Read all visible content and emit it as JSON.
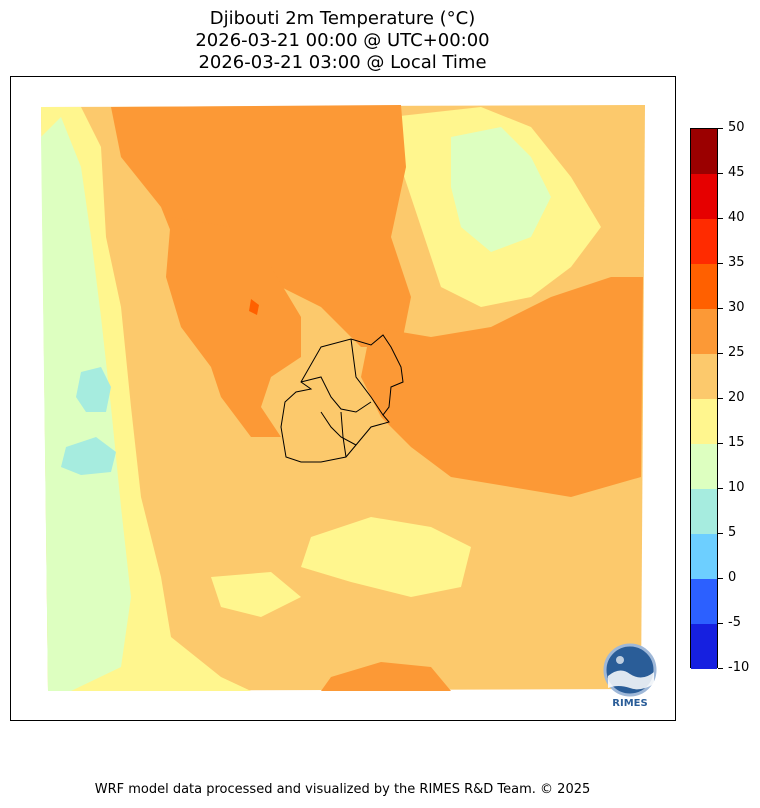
{
  "title": {
    "line1": "Djibouti 2m Temperature (°C)",
    "line2": "2026-03-21 00:00 @ UTC+00:00",
    "line3": "2026-03-21 03:00 @ Local Time"
  },
  "colorbar": {
    "ticks": [
      "50",
      "45",
      "40",
      "35",
      "30",
      "25",
      "20",
      "15",
      "10",
      "5",
      "0",
      "-5",
      "-10"
    ],
    "colors": [
      "#9b0000",
      "#e60000",
      "#ff2b00",
      "#ff6000",
      "#fc9936",
      "#fcc96c",
      "#fff68e",
      "#ddffc0",
      "#a6ecdf",
      "#6dcfff",
      "#2c60ff",
      "#1620e0",
      "#0000b4"
    ]
  },
  "map": {
    "region": "Djibouti",
    "colors": {
      "warm25_30": "#fc9936",
      "mild20_25": "#fcc96c",
      "cool15_20": "#fff68e",
      "cooler10_15": "#ddffc0",
      "cold5_10": "#a6ecdf",
      "hot30_35": "#ff6000",
      "border": "#000000"
    }
  },
  "logo": {
    "text": "RIMES"
  },
  "footer": {
    "text": "WRF model data processed and visualized by the RIMES R&D Team. © 2025"
  }
}
